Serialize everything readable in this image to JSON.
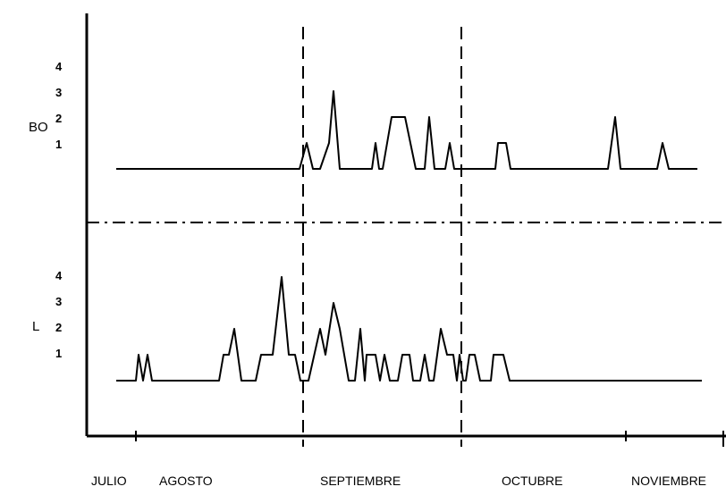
{
  "chart_data": [
    {
      "type": "line",
      "label": "BO",
      "yticks": [
        "1",
        "2",
        "3",
        "4"
      ],
      "ylim": [
        0,
        4
      ],
      "x_axis_months": [
        "JULIO",
        "AGOSTO",
        "SEPTIEMBRE",
        "OCTUBRE",
        "NOVIEMBRE"
      ],
      "series": [
        {
          "points": [
            [
              130,
              0
            ],
            [
              335,
              0
            ],
            [
              343,
              1
            ],
            [
              350,
              0
            ],
            [
              358,
              0
            ],
            [
              368,
              1
            ],
            [
              373,
              3
            ],
            [
              380,
              0
            ],
            [
              416,
              0
            ],
            [
              420,
              1
            ],
            [
              424,
              0
            ],
            [
              428,
              0
            ],
            [
              438,
              2
            ],
            [
              453,
              2
            ],
            [
              465,
              0
            ],
            [
              475,
              0
            ],
            [
              480,
              2
            ],
            [
              486,
              0
            ],
            [
              498,
              0
            ],
            [
              503,
              1
            ],
            [
              508,
              0
            ],
            [
              554,
              0
            ],
            [
              557,
              1
            ],
            [
              566,
              1
            ],
            [
              571,
              0
            ],
            [
              680,
              0
            ],
            [
              688,
              2
            ],
            [
              694,
              0
            ],
            [
              735,
              0
            ],
            [
              741,
              1
            ],
            [
              748,
              0
            ],
            [
              780,
              0
            ]
          ]
        }
      ]
    },
    {
      "type": "line",
      "label": "L",
      "yticks": [
        "1",
        "2",
        "3",
        "4"
      ],
      "ylim": [
        0,
        4
      ],
      "x_axis_months": [
        "JULIO",
        "AGOSTO",
        "SEPTIEMBRE",
        "OCTUBRE",
        "NOVIEMBRE"
      ],
      "series": [
        {
          "points": [
            [
              130,
              0
            ],
            [
              152,
              0
            ],
            [
              155,
              1
            ],
            [
              160,
              0
            ],
            [
              165,
              1
            ],
            [
              170,
              0
            ],
            [
              245,
              0
            ],
            [
              250,
              1
            ],
            [
              256,
              1
            ],
            [
              262,
              2
            ],
            [
              270,
              0
            ],
            [
              286,
              0
            ],
            [
              292,
              1
            ],
            [
              305,
              1
            ],
            [
              315,
              4
            ],
            [
              323,
              1
            ],
            [
              330,
              1
            ],
            [
              336,
              0
            ],
            [
              345,
              0
            ],
            [
              358,
              2
            ],
            [
              364,
              1
            ],
            [
              373,
              3
            ],
            [
              380,
              2
            ],
            [
              390,
              0
            ],
            [
              397,
              0
            ],
            [
              403,
              2
            ],
            [
              408,
              0
            ],
            [
              410,
              1
            ],
            [
              420,
              1
            ],
            [
              425,
              0
            ],
            [
              430,
              1
            ],
            [
              436,
              0
            ],
            [
              445,
              0
            ],
            [
              450,
              1
            ],
            [
              458,
              1
            ],
            [
              462,
              0
            ],
            [
              470,
              0
            ],
            [
              475,
              1
            ],
            [
              480,
              0
            ],
            [
              485,
              0
            ],
            [
              493,
              2
            ],
            [
              500,
              1
            ],
            [
              507,
              1
            ],
            [
              511,
              0
            ],
            [
              514,
              1
            ],
            [
              518,
              0
            ],
            [
              521,
              0
            ],
            [
              525,
              1
            ],
            [
              531,
              1
            ],
            [
              537,
              0
            ],
            [
              549,
              0
            ],
            [
              552,
              1
            ],
            [
              563,
              1
            ],
            [
              570,
              0
            ],
            [
              785,
              0
            ]
          ]
        }
      ]
    }
  ]
}
